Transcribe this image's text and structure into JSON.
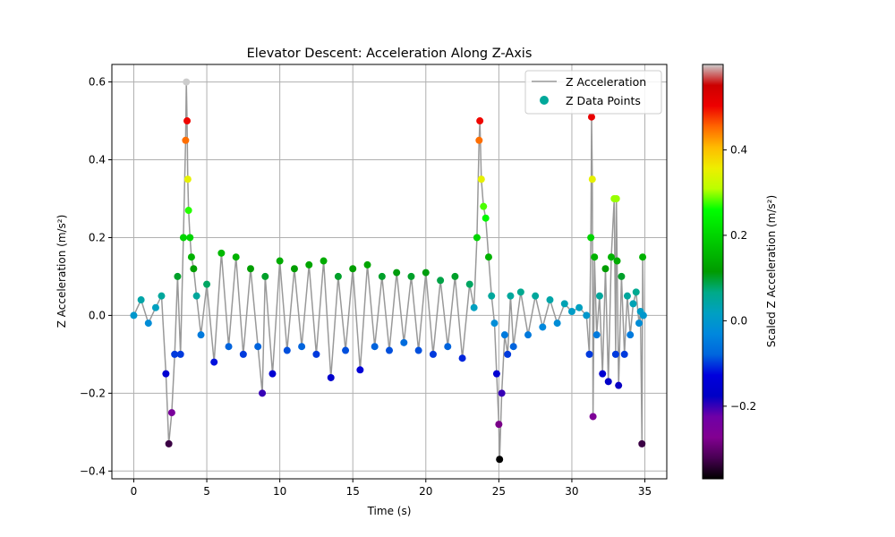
{
  "chart_data": {
    "type": "line",
    "title": "Elevator Descent: Acceleration Along Z-Axis",
    "xlabel": "Time (s)",
    "ylabel": "Z Acceleration (m/s²)",
    "xlim": [
      -1.5,
      36.5
    ],
    "ylim": [
      -0.42,
      0.645
    ],
    "xticks": [
      0,
      5,
      10,
      15,
      20,
      25,
      30,
      35
    ],
    "xtick_labels": [
      "0",
      "5",
      "10",
      "15",
      "20",
      "25",
      "30",
      "35"
    ],
    "yticks": [
      -0.4,
      -0.2,
      0.0,
      0.2,
      0.4,
      0.6
    ],
    "ytick_labels": [
      "−0.4",
      "−0.2",
      "0.0",
      "0.2",
      "0.4",
      "0.6"
    ],
    "grid": true,
    "legend_position": "top-right",
    "series": [
      {
        "name": "Z Acceleration",
        "style": "line",
        "color": "#999999"
      },
      {
        "name": "Z Data Points",
        "style": "scatter",
        "colormap": "nipy_spectral",
        "legend_color": "#00a89a"
      }
    ],
    "x": [
      0.0,
      0.5,
      1.0,
      1.5,
      1.9,
      2.2,
      2.4,
      2.6,
      2.8,
      3.0,
      3.2,
      3.4,
      3.55,
      3.6,
      3.65,
      3.7,
      3.75,
      3.85,
      3.95,
      4.1,
      4.3,
      4.6,
      5.0,
      5.5,
      6.0,
      6.5,
      7.0,
      7.5,
      8.0,
      8.5,
      8.8,
      9.0,
      9.5,
      10.0,
      10.5,
      11.0,
      11.5,
      12.0,
      12.5,
      13.0,
      13.5,
      14.0,
      14.5,
      15.0,
      15.5,
      16.0,
      16.5,
      17.0,
      17.5,
      18.0,
      18.5,
      19.0,
      19.5,
      20.0,
      20.5,
      21.0,
      21.5,
      22.0,
      22.5,
      23.0,
      23.3,
      23.5,
      23.65,
      23.7,
      23.8,
      23.95,
      24.1,
      24.3,
      24.5,
      24.7,
      24.85,
      25.0,
      25.05,
      25.2,
      25.4,
      25.6,
      25.8,
      26.0,
      26.5,
      27.0,
      27.5,
      28.0,
      28.5,
      29.0,
      29.5,
      30.0,
      30.5,
      31.0,
      31.2,
      31.3,
      31.35,
      31.4,
      31.45,
      31.55,
      31.7,
      31.9,
      32.1,
      32.3,
      32.5,
      32.7,
      32.9,
      33.0,
      33.05,
      33.1,
      33.2,
      33.4,
      33.6,
      33.8,
      34.0,
      34.2,
      34.4,
      34.6,
      34.7,
      34.8,
      34.85,
      34.9
    ],
    "y": [
      0.0,
      0.04,
      -0.02,
      0.02,
      0.05,
      -0.15,
      -0.33,
      -0.25,
      -0.1,
      0.1,
      -0.1,
      0.2,
      0.45,
      0.6,
      0.5,
      0.35,
      0.27,
      0.2,
      0.15,
      0.12,
      0.05,
      -0.05,
      0.08,
      -0.12,
      0.16,
      -0.08,
      0.15,
      -0.1,
      0.12,
      -0.08,
      -0.2,
      0.1,
      -0.15,
      0.14,
      -0.09,
      0.12,
      -0.08,
      0.13,
      -0.1,
      0.14,
      -0.16,
      0.1,
      -0.09,
      0.12,
      -0.14,
      0.13,
      -0.08,
      0.1,
      -0.09,
      0.11,
      -0.07,
      0.1,
      -0.09,
      0.11,
      -0.1,
      0.09,
      -0.08,
      0.1,
      -0.11,
      0.08,
      0.02,
      0.2,
      0.45,
      0.5,
      0.35,
      0.28,
      0.25,
      0.15,
      0.05,
      -0.02,
      -0.15,
      -0.28,
      -0.37,
      -0.2,
      -0.05,
      -0.1,
      0.05,
      -0.08,
      0.06,
      -0.05,
      0.05,
      -0.03,
      0.04,
      -0.02,
      0.03,
      0.01,
      0.02,
      0.0,
      -0.1,
      0.2,
      0.51,
      0.35,
      -0.26,
      0.15,
      -0.05,
      0.05,
      -0.15,
      0.12,
      -0.17,
      0.15,
      0.3,
      -0.1,
      0.3,
      0.14,
      -0.18,
      0.1,
      -0.1,
      0.05,
      -0.05,
      0.03,
      0.06,
      -0.02,
      0.01,
      -0.33,
      0.15,
      0.0
    ],
    "colorbar": {
      "label": "Scaled Z Acceleration (m/s²)",
      "range": [
        -0.37,
        0.6
      ],
      "ticks": [
        -0.2,
        0.0,
        0.2,
        0.4
      ],
      "tick_labels": [
        "−0.2",
        "0.0",
        "0.2",
        "0.4"
      ],
      "colormap": "nipy_spectral"
    }
  }
}
